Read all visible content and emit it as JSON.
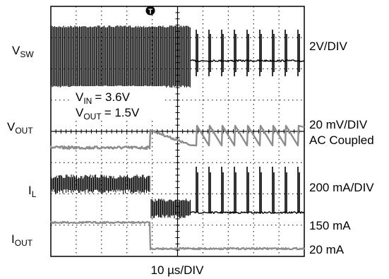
{
  "chart_data": {
    "type": "line",
    "title": "",
    "timebase": "10 µs/DIV",
    "trigger_marker": "T",
    "grid": true,
    "divisions": {
      "x": 10,
      "y": 8
    },
    "conditions": [
      {
        "name": "V",
        "sub": "IN",
        "value": "= 3.6V"
      },
      {
        "name": "V",
        "sub": "OUT",
        "value": "= 1.5V"
      }
    ],
    "channels": [
      {
        "name": "V",
        "sub": "SW",
        "scale": "2V/DIV",
        "coupling": "",
        "color": "#000000",
        "before": "switching (dense PWM)",
        "after": "pulse skipping"
      },
      {
        "name": "V",
        "sub": "OUT",
        "scale": "20 mV/DIV",
        "coupling": "AC Coupled",
        "color": "#8c8c8c",
        "before": "flat",
        "after": "sawtooth ripple"
      },
      {
        "name": "I",
        "sub": "L",
        "scale": "200 mA/DIV",
        "coupling": "",
        "color": "#000000",
        "before": "dense ripple",
        "after": "spikes"
      },
      {
        "name": "I",
        "sub": "OUT",
        "scale": "",
        "coupling": "",
        "color": "#8c8c8c",
        "step_from": "150 mA",
        "step_to": "20 mA"
      }
    ]
  }
}
